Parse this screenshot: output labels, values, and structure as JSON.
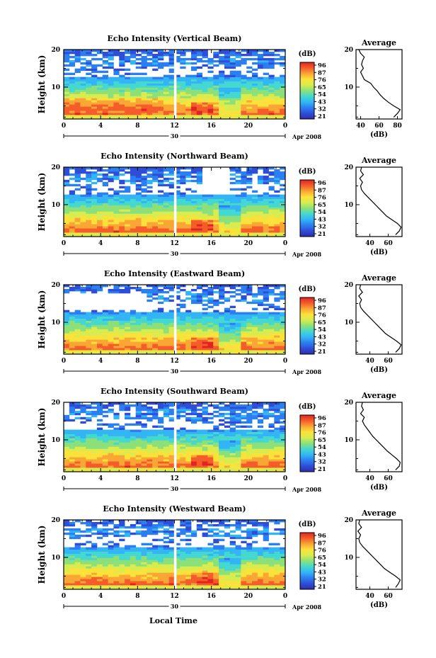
{
  "figure": {
    "xlabel": "Local Time",
    "x_ticks": [
      "0",
      "4",
      "8",
      "12",
      "16",
      "20",
      "0"
    ],
    "date_day": "30",
    "date_month_year": "Apr 2008",
    "y_label": "Height (km)",
    "y_ticks": [
      "10",
      "20"
    ],
    "colorbar_unit": "(dB)",
    "profile_title": "Average",
    "profile_xlabel": "(dB)",
    "colormap": [
      "#2e2ea8",
      "#2f4ed8",
      "#2c7ff0",
      "#33b5f5",
      "#44d8d0",
      "#8ce07a",
      "#d8ec50",
      "#fbe23a",
      "#f9a635",
      "#f45d2a",
      "#e02424"
    ]
  },
  "chart_data": [
    {
      "type": "heatmap",
      "title": "Echo Intensity (Vertical Beam)",
      "x_range_hours": [
        0,
        24
      ],
      "y_range_km": [
        1.5,
        20
      ],
      "colorbar_ticks": [
        "96",
        "87",
        "76",
        "65",
        "54",
        "43",
        "32",
        "21"
      ],
      "profile": {
        "x_ticks": [
          "40",
          "60",
          "80"
        ],
        "xlim": [
          35,
          85
        ],
        "height_km": [
          2,
          3,
          4,
          5,
          6,
          7,
          8,
          9,
          10,
          11,
          12,
          13,
          14,
          15,
          16,
          17,
          18,
          19,
          20
        ],
        "values_db": [
          76,
          80,
          83,
          76,
          70,
          65,
          61,
          58,
          54,
          51,
          44,
          42,
          40,
          43,
          41,
          42,
          44,
          40,
          38
        ]
      }
    },
    {
      "type": "heatmap",
      "title": "Echo Intensity (Northward Beam)",
      "x_range_hours": [
        0,
        24
      ],
      "y_range_km": [
        1.5,
        20
      ],
      "colorbar_ticks": [
        "96",
        "87",
        "76",
        "65",
        "54",
        "43",
        "32",
        "21"
      ],
      "profile": {
        "x_ticks": [
          "40",
          "60"
        ],
        "xlim": [
          25,
          75
        ],
        "height_km": [
          2,
          3,
          4,
          5,
          6,
          7,
          8,
          9,
          10,
          11,
          12,
          13,
          14,
          15,
          16,
          17,
          18,
          19,
          20
        ],
        "values_db": [
          68,
          72,
          74,
          70,
          64,
          58,
          54,
          50,
          46,
          42,
          38,
          34,
          31,
          30,
          32,
          29,
          33,
          30,
          31
        ]
      }
    },
    {
      "type": "heatmap",
      "title": "Echo Intensity (Eastward Beam)",
      "x_range_hours": [
        0,
        24
      ],
      "y_range_km": [
        1.5,
        20
      ],
      "colorbar_ticks": [
        "96",
        "87",
        "76",
        "65",
        "54",
        "43",
        "32",
        "21"
      ],
      "profile": {
        "x_ticks": [
          "40",
          "60"
        ],
        "xlim": [
          25,
          75
        ],
        "height_km": [
          2,
          3,
          4,
          5,
          6,
          7,
          8,
          9,
          10,
          11,
          12,
          13,
          14,
          15,
          16,
          17,
          18,
          19,
          20
        ],
        "values_db": [
          68,
          72,
          74,
          69,
          63,
          57,
          53,
          49,
          45,
          41,
          37,
          33,
          30,
          29,
          31,
          28,
          32,
          29,
          30
        ]
      }
    },
    {
      "type": "heatmap",
      "title": "Echo Intensity (Southward Beam)",
      "x_range_hours": [
        0,
        24
      ],
      "y_range_km": [
        1.5,
        20
      ],
      "colorbar_ticks": [
        "96",
        "87",
        "76",
        "65",
        "54",
        "43",
        "32",
        "21"
      ],
      "profile": {
        "x_ticks": [
          "40",
          "60"
        ],
        "xlim": [
          25,
          75
        ],
        "height_km": [
          2,
          3,
          4,
          5,
          6,
          7,
          8,
          9,
          10,
          11,
          12,
          13,
          14,
          15,
          16,
          17,
          18,
          19,
          20
        ],
        "values_db": [
          68,
          72,
          73,
          69,
          64,
          59,
          55,
          51,
          47,
          43,
          40,
          37,
          34,
          32,
          34,
          30,
          33,
          31,
          32
        ]
      }
    },
    {
      "type": "heatmap",
      "title": "Echo Intensity (Westward Beam)",
      "x_range_hours": [
        0,
        24
      ],
      "y_range_km": [
        1.5,
        20
      ],
      "colorbar_ticks": [
        "96",
        "87",
        "76",
        "65",
        "54",
        "43",
        "32",
        "21"
      ],
      "profile": {
        "x_ticks": [
          "40",
          "60"
        ],
        "xlim": [
          25,
          75
        ],
        "height_km": [
          2,
          3,
          4,
          5,
          6,
          7,
          8,
          9,
          10,
          11,
          12,
          13,
          14,
          15,
          16,
          17,
          18,
          19,
          20
        ],
        "values_db": [
          68,
          71,
          73,
          68,
          62,
          56,
          52,
          48,
          44,
          40,
          36,
          32,
          29,
          28,
          30,
          27,
          31,
          28,
          29
        ]
      }
    }
  ]
}
